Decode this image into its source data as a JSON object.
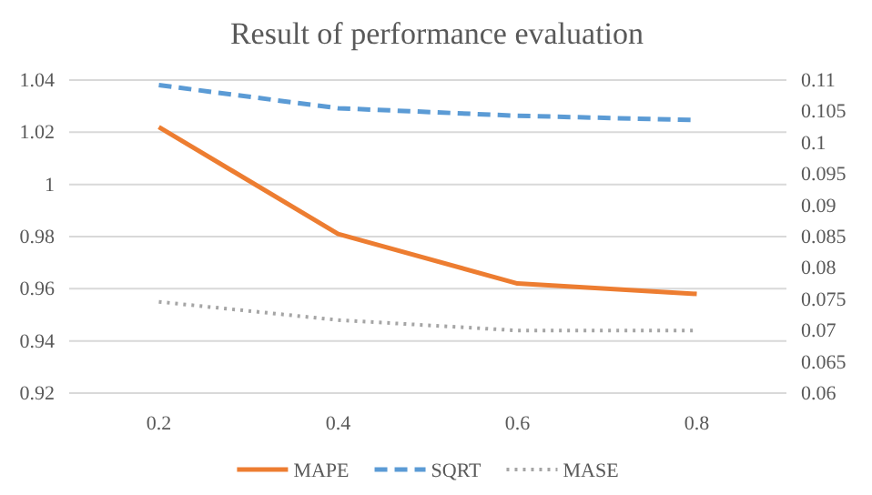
{
  "chart_data": {
    "type": "line",
    "title": "Result of performance evaluation",
    "categories": [
      "0.2",
      "0.4",
      "0.6",
      "0.8"
    ],
    "series": [
      {
        "name": "MAPE",
        "color": "#ed7d31",
        "values": [
          1.022,
          0.981,
          0.962,
          0.958
        ],
        "line_style": "solid"
      },
      {
        "name": "SQRT",
        "color": "#5b9bd5",
        "values": [
          0.1092,
          0.1055,
          0.1043,
          0.1036
        ],
        "line_style": "dashed",
        "axis": "y2"
      },
      {
        "name": "MASE",
        "color": "#a5a5a5",
        "values": [
          0.955,
          0.948,
          0.944,
          0.944
        ],
        "line_style": "dotted"
      }
    ],
    "ylim": [
      0.92,
      1.04
    ],
    "yticks": [
      0.92,
      0.94,
      0.96,
      0.98,
      1,
      1.02,
      1.04
    ],
    "y2lim": [
      0.06,
      0.11
    ],
    "y2ticks": [
      0.06,
      0.065,
      0.07,
      0.075,
      0.08,
      0.085,
      0.09,
      0.095,
      0.1,
      0.105,
      0.11
    ],
    "grid": "y",
    "legend": "bottom",
    "marker": "none"
  }
}
